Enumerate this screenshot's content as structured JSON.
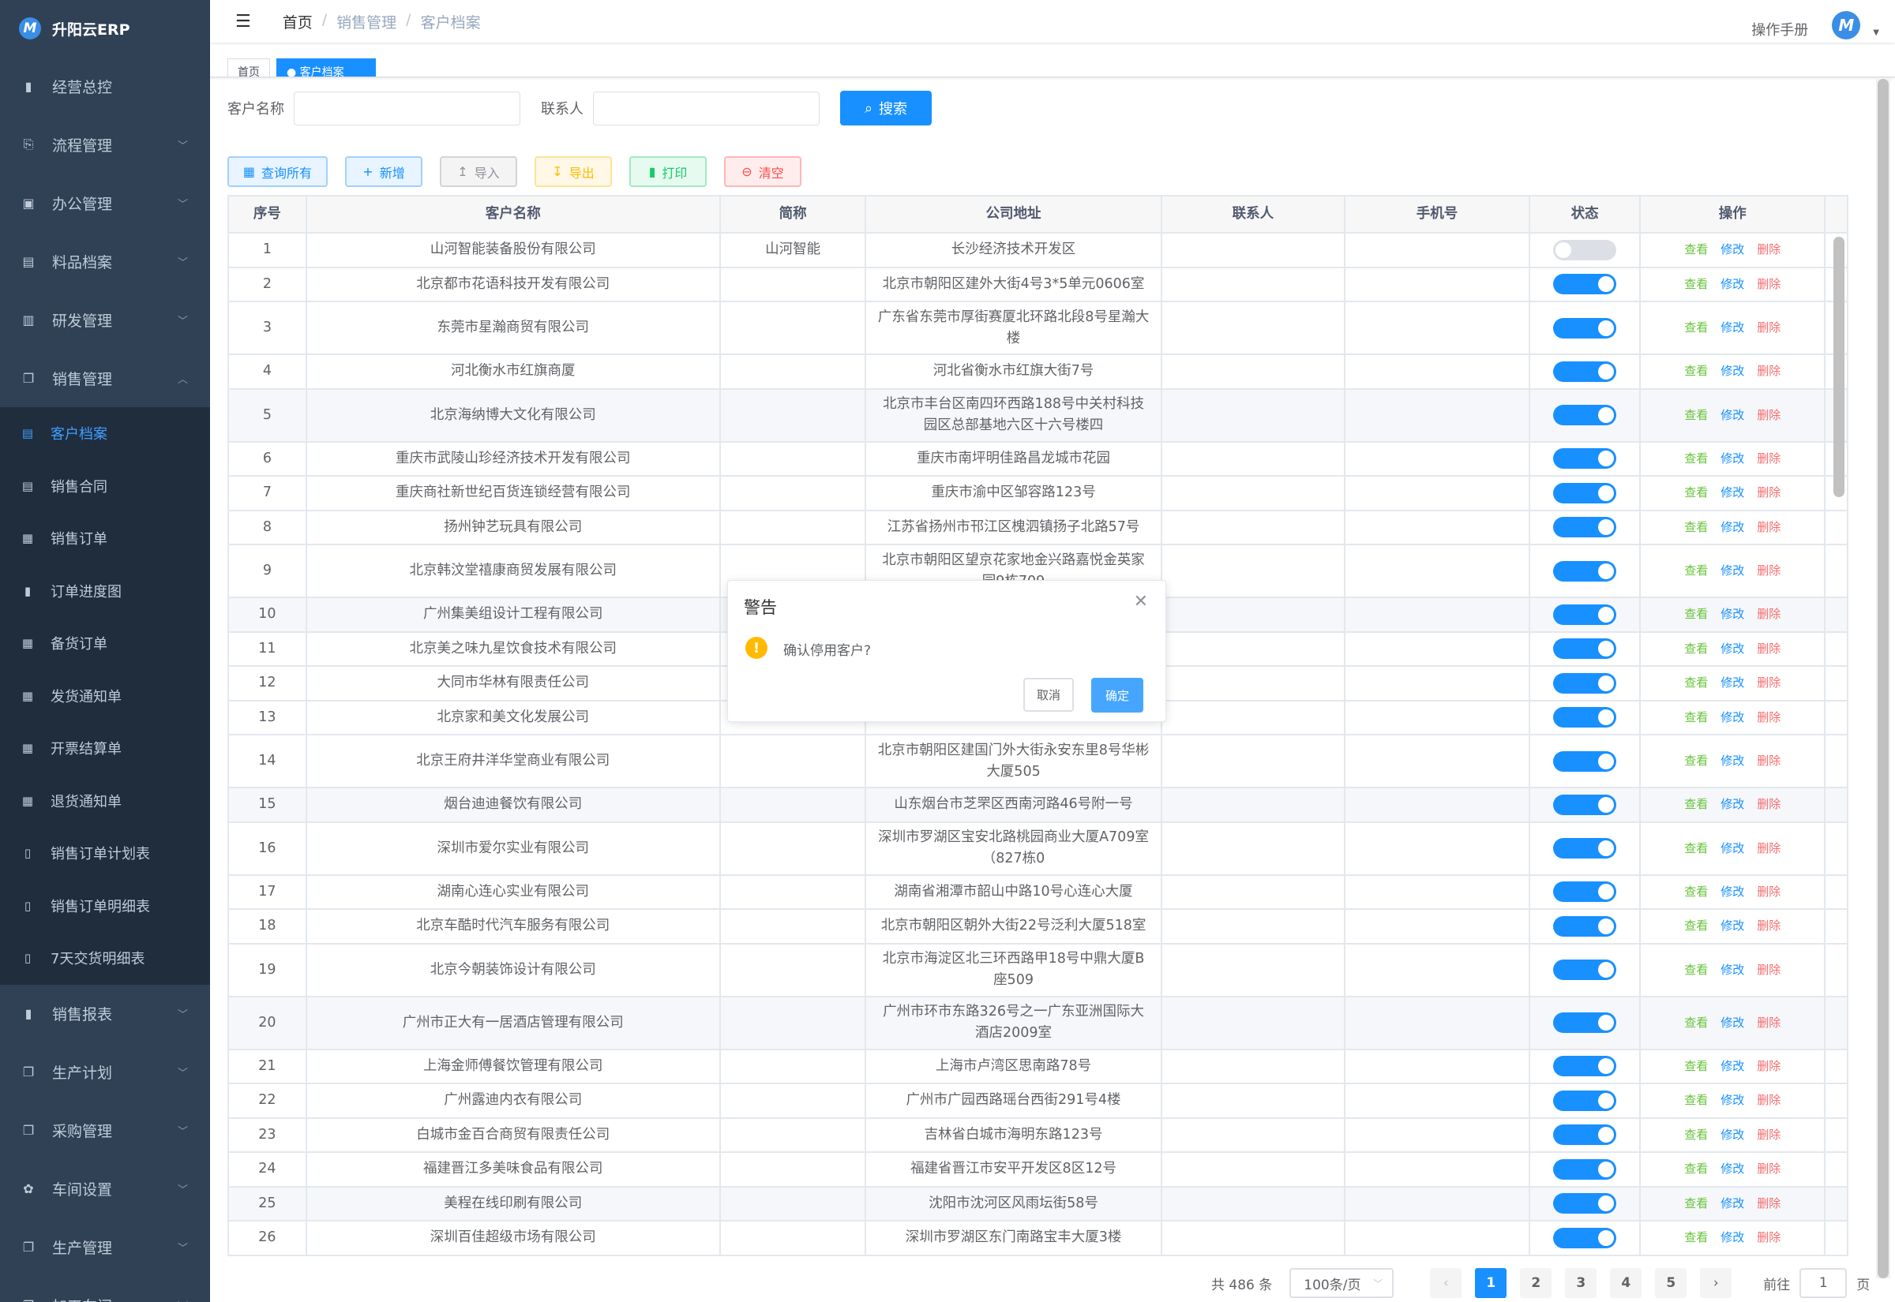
{
  "app": {
    "title": "升阳云ERP",
    "logo_text": "M"
  },
  "sidebar": {
    "items": [
      {
        "label": "经营总控",
        "icon": "bar-chart-icon",
        "glyph": "▮",
        "arrow": ""
      },
      {
        "label": "流程管理",
        "icon": "flow-icon",
        "glyph": "⎘",
        "arrow": "﹀"
      },
      {
        "label": "办公管理",
        "icon": "office-icon",
        "glyph": "▣",
        "arrow": "﹀"
      },
      {
        "label": "料品档案",
        "icon": "book-icon",
        "glyph": "▤",
        "arrow": "﹀"
      },
      {
        "label": "研发管理",
        "icon": "rnd-icon",
        "glyph": "▥",
        "arrow": "﹀"
      },
      {
        "label": "销售管理",
        "icon": "documents-icon",
        "glyph": "❐",
        "arrow": "︿"
      }
    ],
    "sub_items": [
      {
        "label": "客户档案",
        "icon": "document-icon",
        "glyph": "▤",
        "active": true
      },
      {
        "label": "销售合同",
        "icon": "document-icon",
        "glyph": "▤"
      },
      {
        "label": "销售订单",
        "icon": "table-icon",
        "glyph": "▦"
      },
      {
        "label": "订单进度图",
        "icon": "bar-chart-icon",
        "glyph": "▮"
      },
      {
        "label": "备货订单",
        "icon": "table-icon",
        "glyph": "▦"
      },
      {
        "label": "发货通知单",
        "icon": "table-icon",
        "glyph": "▦"
      },
      {
        "label": "开票结算单",
        "icon": "table-icon",
        "glyph": "▦"
      },
      {
        "label": "退货通知单",
        "icon": "table-icon",
        "glyph": "▦"
      },
      {
        "label": "销售订单计划表",
        "icon": "book-open-icon",
        "glyph": "▯"
      },
      {
        "label": "销售订单明细表",
        "icon": "book-open-icon",
        "glyph": "▯"
      },
      {
        "label": "7天交货明细表",
        "icon": "book-open-icon",
        "glyph": "▯"
      }
    ],
    "items_after": [
      {
        "label": "销售报表",
        "icon": "bar-chart-icon",
        "glyph": "▮",
        "arrow": "﹀"
      },
      {
        "label": "生产计划",
        "icon": "documents-icon",
        "glyph": "❐",
        "arrow": "﹀"
      },
      {
        "label": "采购管理",
        "icon": "documents-icon",
        "glyph": "❐",
        "arrow": "﹀"
      },
      {
        "label": "车间设置",
        "icon": "gear-icon",
        "glyph": "✿",
        "arrow": "﹀"
      },
      {
        "label": "生产管理",
        "icon": "documents-icon",
        "glyph": "❐",
        "arrow": "﹀"
      },
      {
        "label": "加工车间",
        "icon": "documents-icon",
        "glyph": "❐",
        "arrow": "﹀"
      }
    ]
  },
  "header": {
    "breadcrumb": [
      "首页",
      "销售管理",
      "客户档案"
    ],
    "manual": "操作手册"
  },
  "tags": [
    "首页",
    "● 客户档案"
  ],
  "search": {
    "customer_label": "客户名称",
    "customer_value": "",
    "contact_label": "联系人",
    "contact_value": "",
    "button": "搜索"
  },
  "toolbar": {
    "query_all": "查询所有",
    "add": "新增",
    "import": "导入",
    "export": "导出",
    "print": "打印",
    "clear": "清空"
  },
  "table": {
    "columns": [
      "序号",
      "客户名称",
      "简称",
      "公司地址",
      "联系人",
      "手机号",
      "状态",
      "操作"
    ],
    "actions": {
      "view": "查看",
      "edit": "修改",
      "delete": "删除"
    },
    "rows": [
      {
        "no": "1",
        "name": "山河智能装备股份有限公司",
        "short": "山河智能",
        "address": "长沙经济技术开发区",
        "contact": "",
        "phone": "",
        "enabled": false
      },
      {
        "no": "2",
        "name": "北京都市花语科技开发有限公司",
        "short": "",
        "address": "北京市朝阳区建外大街4号3*5单元0606室",
        "contact": "",
        "phone": "",
        "enabled": true
      },
      {
        "no": "3",
        "name": "东莞市星瀚商贸有限公司",
        "short": "",
        "address": "广东省东莞市厚街赛厦北环路北段8号星瀚大楼",
        "contact": "",
        "phone": "",
        "enabled": true
      },
      {
        "no": "4",
        "name": "河北衡水市红旗商厦",
        "short": "",
        "address": "河北省衡水市红旗大街7号",
        "contact": "",
        "phone": "",
        "enabled": true
      },
      {
        "no": "5",
        "name": "北京海纳博大文化有限公司",
        "short": "",
        "address": "北京市丰台区南四环西路188号中关村科技园区总部基地六区十六号楼四",
        "contact": "",
        "phone": "",
        "enabled": true
      },
      {
        "no": "6",
        "name": "重庆市武陵山珍经济技术开发有限公司",
        "short": "",
        "address": "重庆市南坪明佳路昌龙城市花园",
        "contact": "",
        "phone": "",
        "enabled": true
      },
      {
        "no": "7",
        "name": "重庆商社新世纪百货连锁经营有限公司",
        "short": "",
        "address": "重庆市渝中区邹容路123号",
        "contact": "",
        "phone": "",
        "enabled": true
      },
      {
        "no": "8",
        "name": "扬州钟艺玩具有限公司",
        "short": "",
        "address": "江苏省扬州市邗江区槐泗镇扬子北路57号",
        "contact": "",
        "phone": "",
        "enabled": true
      },
      {
        "no": "9",
        "name": "北京韩汶堂禧康商贸发展有限公司",
        "short": "",
        "address": "北京市朝阳区望京花家地金兴路嘉悦金英家园9栋709",
        "contact": "",
        "phone": "",
        "enabled": true
      },
      {
        "no": "10",
        "name": "广州集美组设计工程有限公司",
        "short": "",
        "address": "",
        "contact": "",
        "phone": "",
        "enabled": true
      },
      {
        "no": "11",
        "name": "北京美之味九星饮食技术有限公司",
        "short": "",
        "address": "",
        "contact": "",
        "phone": "",
        "enabled": true
      },
      {
        "no": "12",
        "name": "大同市华林有限责任公司",
        "short": "",
        "address": "",
        "contact": "",
        "phone": "",
        "enabled": true
      },
      {
        "no": "13",
        "name": "北京家和美文化发展公司",
        "short": "",
        "address": "",
        "contact": "",
        "phone": "",
        "enabled": true
      },
      {
        "no": "14",
        "name": "北京王府井洋华堂商业有限公司",
        "short": "",
        "address": "北京市朝阳区建国门外大街永安东里8号华彬大厦505",
        "contact": "",
        "phone": "",
        "enabled": true
      },
      {
        "no": "15",
        "name": "烟台迪迪餐饮有限公司",
        "short": "",
        "address": "山东烟台市芝罘区西南河路46号附一号",
        "contact": "",
        "phone": "",
        "enabled": true
      },
      {
        "no": "16",
        "name": "深圳市爱尔实业有限公司",
        "short": "",
        "address": "深圳市罗湖区宝安北路桃园商业大厦A709室（827栋0",
        "contact": "",
        "phone": "",
        "enabled": true
      },
      {
        "no": "17",
        "name": "湖南心连心实业有限公司",
        "short": "",
        "address": "湖南省湘潭市韶山中路10号心连心大厦",
        "contact": "",
        "phone": "",
        "enabled": true
      },
      {
        "no": "18",
        "name": "北京车酷时代汽车服务有限公司",
        "short": "",
        "address": "北京市朝阳区朝外大街22号泛利大厦518室",
        "contact": "",
        "phone": "",
        "enabled": true
      },
      {
        "no": "19",
        "name": "北京今朝装饰设计有限公司",
        "short": "",
        "address": "北京市海淀区北三环西路甲18号中鼎大厦B座509",
        "contact": "",
        "phone": "",
        "enabled": true
      },
      {
        "no": "20",
        "name": "广州市正大有一居酒店管理有限公司",
        "short": "",
        "address": "广州市环市东路326号之一广东亚洲国际大酒店2009室",
        "contact": "",
        "phone": "",
        "enabled": true
      },
      {
        "no": "21",
        "name": "上海金师傅餐饮管理有限公司",
        "short": "",
        "address": "上海市卢湾区思南路78号",
        "contact": "",
        "phone": "",
        "enabled": true
      },
      {
        "no": "22",
        "name": "广州露迪内衣有限公司",
        "short": "",
        "address": "广州市广园西路瑶台西街291号4楼",
        "contact": "",
        "phone": "",
        "enabled": true
      },
      {
        "no": "23",
        "name": "白城市金百合商贸有限责任公司",
        "short": "",
        "address": "吉林省白城市海明东路123号",
        "contact": "",
        "phone": "",
        "enabled": true
      },
      {
        "no": "24",
        "name": "福建晋江多美味食品有限公司",
        "short": "",
        "address": "福建省晋江市安平开发区8区12号",
        "contact": "",
        "phone": "",
        "enabled": true
      },
      {
        "no": "25",
        "name": "美程在线印刷有限公司",
        "short": "",
        "address": "沈阳市沈河区风雨坛街58号",
        "contact": "",
        "phone": "",
        "enabled": true
      },
      {
        "no": "26",
        "name": "深圳百佳超级市场有限公司",
        "short": "",
        "address": "深圳市罗湖区东门南路宝丰大厦3楼",
        "contact": "",
        "phone": "",
        "enabled": true
      }
    ]
  },
  "pagination": {
    "total": "共 486 条",
    "page_size": "100条/页",
    "pages": [
      "1",
      "2",
      "3",
      "4",
      "5"
    ],
    "current": "1",
    "goto_label": "前往",
    "goto_value": "1",
    "goto_suffix": "页"
  },
  "dialog": {
    "title": "警告",
    "message": "确认停用客户?",
    "cancel": "取消",
    "confirm": "确定"
  },
  "colors": {
    "sidebar": "#304156",
    "primary": "#1890ff",
    "view": "#67c23a",
    "delete": "#f56c6c",
    "warning": "#ffba00"
  }
}
